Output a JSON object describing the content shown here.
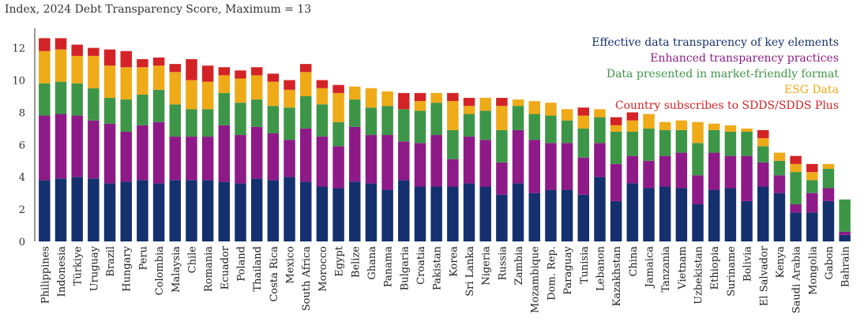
{
  "chart_data": {
    "type": "bar",
    "stacked": true,
    "title": "Index, 2024 Debt Transparency Score, Maximum = 13",
    "xlabel": "",
    "ylabel": "",
    "ylim": [
      0,
      13
    ],
    "yticks": [
      "0",
      "2",
      "4",
      "6",
      "8",
      "10",
      "12"
    ],
    "grid": false,
    "legend_position": "top-right",
    "categories": [
      "Philippines",
      "Indonesia",
      "Türkiye",
      "Uruguay",
      "Brazil",
      "Hungary",
      "Peru",
      "Colombia",
      "Malaysia",
      "Chile",
      "Romania",
      "Ecuador",
      "Poland",
      "Thailand",
      "Costa Rica",
      "Mexico",
      "South Africa",
      "Morocco",
      "Egypt",
      "Belize",
      "Ghana",
      "Panama",
      "Bulgaria",
      "Croatia",
      "Pakistan",
      "Korea",
      "Sri Lanka",
      "Nigeria",
      "Russia",
      "Zambia",
      "Mozambique",
      "Dom. Rep.",
      "Paraguay",
      "Tunisia",
      "Lebanon",
      "Kazakhstan",
      "China",
      "Jamaica",
      "Tanzania",
      "Vietnam",
      "Uzbekistan",
      "Ethiopia",
      "Suriname",
      "Bolivia",
      "El Salvador",
      "Kenya",
      "Saudi Arabia",
      "Mongolia",
      "Gabon",
      "Bahrain"
    ],
    "series": [
      {
        "name": "Effective data transparency of key elements",
        "color": "#15306e",
        "values": [
          3.8,
          3.9,
          4.0,
          3.9,
          3.6,
          3.7,
          3.8,
          3.6,
          3.8,
          3.8,
          3.8,
          3.7,
          3.6,
          3.9,
          3.8,
          4.0,
          3.7,
          3.4,
          3.3,
          3.7,
          3.6,
          3.2,
          3.8,
          3.4,
          3.4,
          3.4,
          3.6,
          3.4,
          2.9,
          3.6,
          3.0,
          3.2,
          3.2,
          2.9,
          4.0,
          2.5,
          3.6,
          3.3,
          3.4,
          3.3,
          2.3,
          3.2,
          3.3,
          2.5,
          3.4,
          3.0,
          1.8,
          1.8,
          2.5,
          0.4
        ]
      },
      {
        "name": "Enhanced transparency practices",
        "color": "#8e1a88",
        "values": [
          4.0,
          4.0,
          3.8,
          3.6,
          3.7,
          3.1,
          3.4,
          3.8,
          2.7,
          2.7,
          2.7,
          3.5,
          3.0,
          3.2,
          2.9,
          2.3,
          3.3,
          3.1,
          2.6,
          3.4,
          3.0,
          3.4,
          2.4,
          2.7,
          3.2,
          1.7,
          2.9,
          2.9,
          2.0,
          3.3,
          3.3,
          2.9,
          2.9,
          2.3,
          2.1,
          2.3,
          1.7,
          1.7,
          1.9,
          2.2,
          1.8,
          2.3,
          2.0,
          2.8,
          1.5,
          1.1,
          0.5,
          1.2,
          0.8,
          0.2
        ]
      },
      {
        "name": "Data presented in market-friendly format",
        "color": "#3d9648",
        "values": [
          2.0,
          2.0,
          2.0,
          2.0,
          1.6,
          2.0,
          1.9,
          2.0,
          2.0,
          1.7,
          1.7,
          2.0,
          2.0,
          1.7,
          1.7,
          2.0,
          2.0,
          2.0,
          1.5,
          1.7,
          1.7,
          1.8,
          2.0,
          2.0,
          2.0,
          1.8,
          1.4,
          1.8,
          2.0,
          1.5,
          1.6,
          1.7,
          1.4,
          1.8,
          1.6,
          2.0,
          1.5,
          2.0,
          1.6,
          1.4,
          2.0,
          1.4,
          1.5,
          1.5,
          1.0,
          0.9,
          2.0,
          0.8,
          1.2,
          2.0
        ]
      },
      {
        "name": "ESG Data",
        "color": "#efaa18",
        "values": [
          2.0,
          2.0,
          1.7,
          2.0,
          2.0,
          2.0,
          1.7,
          1.5,
          2.0,
          1.8,
          1.7,
          1.1,
          1.5,
          1.5,
          1.5,
          1.1,
          1.5,
          1.0,
          1.8,
          0.8,
          1.2,
          0.9,
          0.0,
          0.6,
          0.6,
          1.8,
          0.5,
          0.8,
          1.5,
          0.4,
          0.8,
          0.8,
          0.7,
          0.8,
          0.5,
          0.4,
          0.7,
          0.9,
          0.5,
          0.6,
          1.3,
          0.4,
          0.4,
          0.2,
          0.5,
          0.5,
          0.5,
          0.5,
          0.3,
          0.0
        ]
      },
      {
        "name": "Country subscribes to SDDS/SDDS Plus",
        "color": "#d42326",
        "values": [
          0.8,
          0.7,
          0.7,
          0.5,
          1.0,
          1.0,
          0.5,
          0.5,
          0.5,
          1.3,
          1.0,
          0.5,
          0.5,
          0.5,
          0.5,
          0.6,
          0.5,
          0.5,
          0.5,
          0.0,
          0.0,
          0.0,
          1.0,
          0.5,
          0.0,
          0.5,
          0.5,
          0.0,
          0.5,
          0.0,
          0.0,
          0.0,
          0.0,
          0.5,
          0.0,
          0.5,
          0.5,
          0.0,
          0.0,
          0.0,
          0.0,
          0.0,
          0.0,
          0.0,
          0.5,
          0.0,
          0.5,
          0.5,
          0.0,
          0.0
        ]
      }
    ]
  }
}
